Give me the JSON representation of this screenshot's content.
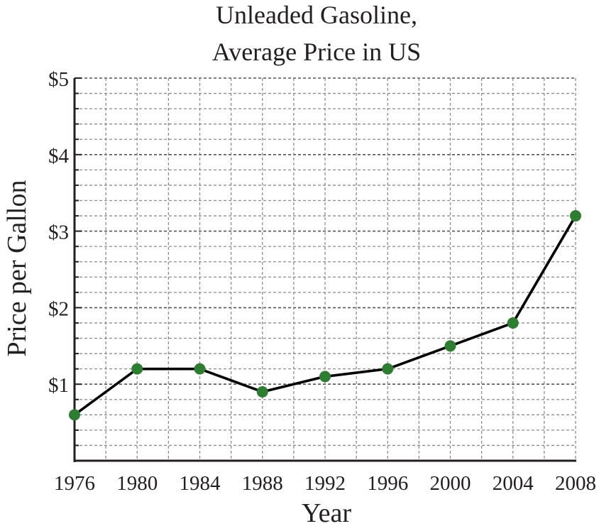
{
  "chart_data": {
    "type": "line",
    "title_lines": [
      "Unleaded Gasoline,",
      "Average Price in US"
    ],
    "xlabel": "Year",
    "ylabel": "Price per Gallon",
    "x": [
      1976,
      1980,
      1984,
      1988,
      1992,
      1996,
      2000,
      2004,
      2008
    ],
    "series": [
      {
        "values": [
          0.6,
          1.2,
          1.2,
          0.9,
          1.1,
          1.2,
          1.5,
          1.8,
          3.2
        ]
      }
    ],
    "xlim": [
      1976,
      2008
    ],
    "ylim": [
      0,
      5
    ],
    "x_ticks": [
      "1976",
      "1980",
      "1984",
      "1988",
      "1992",
      "1996",
      "2000",
      "2004",
      "2008"
    ],
    "y_ticks": [
      {
        "value": 1,
        "label": "$1"
      },
      {
        "value": 2,
        "label": "$2"
      },
      {
        "value": 3,
        "label": "$3"
      },
      {
        "value": 4,
        "label": "$4"
      },
      {
        "value": 5,
        "label": "$5"
      }
    ],
    "y_minor_step": 0.2,
    "grid": true,
    "colors": {
      "line": "#000000",
      "marker": "#2e7d32",
      "grid": "#8c8c8c",
      "axis": "#231f20"
    }
  }
}
